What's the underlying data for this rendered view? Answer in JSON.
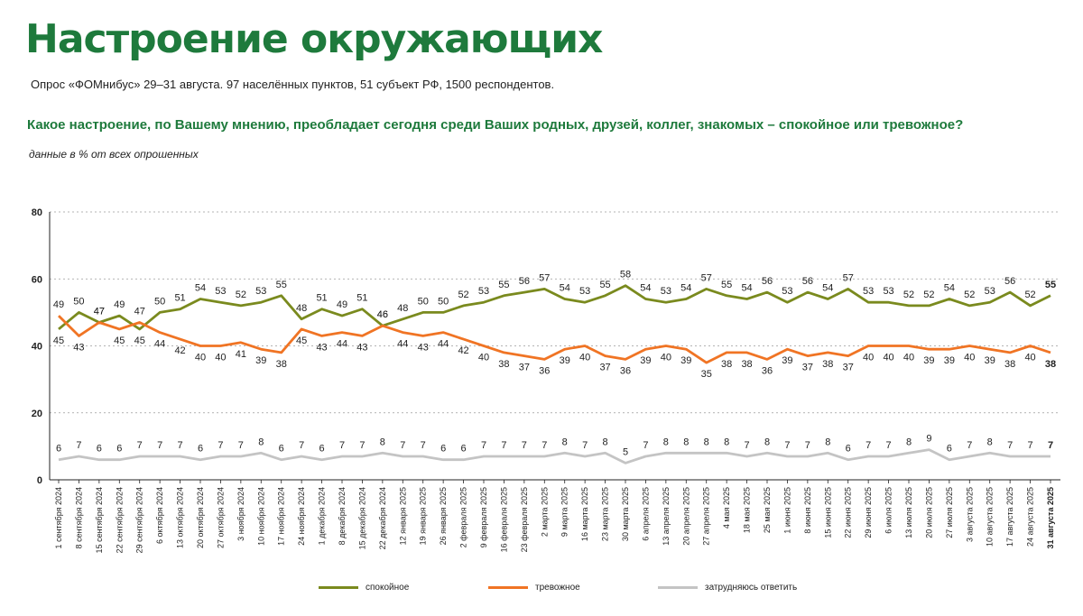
{
  "header": {
    "title": "Настроение окружающих",
    "subtitle": "Опрос «ФОМнибус» 29–31 августа. 97 населённых пунктов, 51 субъект РФ, 1500 респондентов.",
    "question": "Какое настроение, по Вашему мнению, преобладает сегодня среди Ваших родных, друзей, коллег, знакомых – спокойное или тревожное?",
    "note": "данные в % от всех опрошенных"
  },
  "legend": {
    "calm": "спокойное",
    "anxious": "тревожное",
    "unsure": "затрудняюсь ответить"
  },
  "colors": {
    "calm": "#7a8a1e",
    "anxious": "#f07424",
    "unsure": "#c4c4c4",
    "title": "#1e7a3c",
    "grid": "#9a9a9a"
  },
  "chart_data": {
    "type": "line",
    "ylim": [
      0,
      80
    ],
    "yticks": [
      "0",
      "20",
      "40",
      "60",
      "80"
    ],
    "x": [
      "1 сентября 2024",
      "8 сентября 2024",
      "15 сентября 2024",
      "22 сентября 2024",
      "29 сентября 2024",
      "6 октября 2024",
      "13 октября 2024",
      "20 октября 2024",
      "27 октября 2024",
      "3 ноября 2024",
      "10 ноября 2024",
      "17 ноября 2024",
      "24 ноября 2024",
      "1 декабря 2024",
      "8 декабря 2024",
      "15 декабря 2024",
      "22 декабря 2024",
      "12 января 2025",
      "19 января 2025",
      "26 января 2025",
      "2 февраля 2025",
      "9 февраля 2025",
      "16 февраля 2025",
      "23 февраля 2025",
      "2 марта 2025",
      "9 марта 2025",
      "16 марта 2025",
      "23 марта 2025",
      "30 марта 2025",
      "6 апреля 2025",
      "13 апреля 2025",
      "20 апреля 2025",
      "27 апреля 2025",
      "4 мая 2025",
      "18 мая 2025",
      "25 мая 2025",
      "1 июня 2025",
      "8 июня 2025",
      "15 июня 2025",
      "22 июня 2025",
      "29 июня 2025",
      "6 июля 2025",
      "13 июля 2025",
      "20 июля 2025",
      "27 июля 2025",
      "3 августа 2025",
      "10 августа 2025",
      "17 августа 2025",
      "24 августа 2025",
      "31 августа 2025"
    ],
    "series": [
      {
        "name": "спокойное",
        "key": "calm",
        "values": [
          45,
          50,
          47,
          49,
          45,
          50,
          51,
          54,
          53,
          52,
          53,
          55,
          48,
          51,
          49,
          51,
          46,
          48,
          50,
          50,
          52,
          53,
          55,
          56,
          57,
          54,
          53,
          55,
          58,
          54,
          53,
          54,
          57,
          55,
          54,
          56,
          53,
          56,
          54,
          57,
          53,
          53,
          52,
          52,
          54,
          52,
          53,
          56,
          52,
          55
        ]
      },
      {
        "name": "тревожное",
        "key": "anxious",
        "values": [
          49,
          43,
          47,
          45,
          47,
          44,
          42,
          40,
          40,
          41,
          39,
          38,
          45,
          43,
          44,
          43,
          46,
          44,
          43,
          44,
          42,
          40,
          38,
          37,
          36,
          39,
          40,
          37,
          36,
          39,
          40,
          39,
          35,
          38,
          38,
          36,
          39,
          37,
          38,
          37,
          40,
          40,
          40,
          39,
          39,
          40,
          39,
          38,
          40,
          38
        ]
      },
      {
        "name": "затрудняюсь ответить",
        "key": "unsure",
        "values": [
          6,
          7,
          6,
          6,
          7,
          7,
          7,
          6,
          7,
          7,
          8,
          6,
          7,
          6,
          7,
          7,
          8,
          7,
          7,
          6,
          6,
          7,
          7,
          7,
          7,
          8,
          7,
          8,
          5,
          7,
          8,
          8,
          8,
          8,
          7,
          8,
          7,
          7,
          8,
          6,
          7,
          7,
          8,
          9,
          6,
          7,
          8,
          7,
          7,
          7
        ]
      }
    ]
  }
}
